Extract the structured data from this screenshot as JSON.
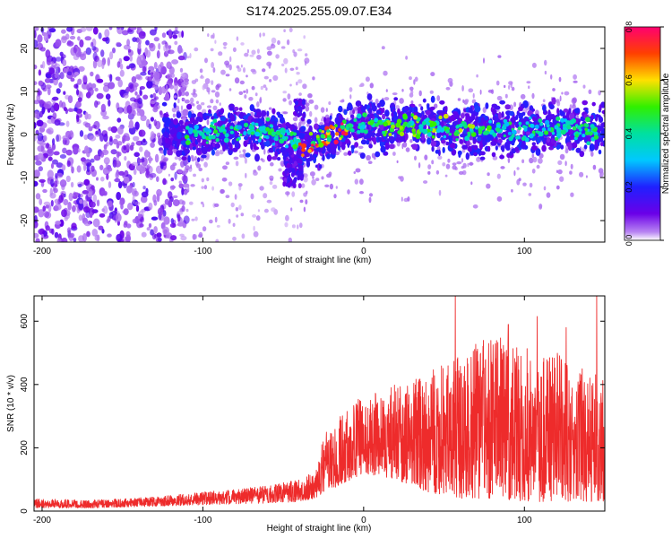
{
  "title": "S174.2025.255.09.07.E34",
  "colors": {
    "snr_line": "#ee2b2b",
    "spectrum_scatter": "#7a1ee0",
    "spectrum_ridge": "#3fd24a"
  },
  "chart_data": [
    {
      "type": "heatmap",
      "panel": "top",
      "title": "S174.2025.255.09.07.E34",
      "xlabel": "Height of straight line (km)",
      "ylabel": "Frequency (Hz)",
      "xlim": [
        -205,
        150
      ],
      "ylim": [
        -25,
        25
      ],
      "xticks": [
        -200,
        -100,
        0,
        100
      ],
      "yticks": [
        -20,
        -10,
        0,
        10,
        20
      ],
      "ridge": {
        "description_points_x": [
          -120,
          -60,
          -45,
          -38,
          -30,
          -20,
          -10,
          0,
          20,
          40,
          60,
          80,
          100,
          150
        ],
        "description_points_y": [
          0,
          1,
          -2,
          -3,
          -2,
          0,
          1,
          2,
          2,
          2,
          1,
          1,
          1,
          1
        ]
      },
      "colorbar": {
        "label": "Normalized spectral amplitude",
        "range": [
          0.0,
          0.8
        ],
        "ticks": [
          "0.0",
          "0.2",
          "0.4",
          "0.6",
          "0.8"
        ],
        "ticks_num": [
          0.0,
          0.2,
          0.4,
          0.6,
          0.8
        ],
        "stops": [
          {
            "v": 0.0,
            "c": "#ffffff"
          },
          {
            "v": 0.03,
            "c": "#b986f2"
          },
          {
            "v": 0.1,
            "c": "#6a00e8"
          },
          {
            "v": 0.2,
            "c": "#2020ff"
          },
          {
            "v": 0.3,
            "c": "#00c8ff"
          },
          {
            "v": 0.4,
            "c": "#00e0a0"
          },
          {
            "v": 0.5,
            "c": "#30f000"
          },
          {
            "v": 0.6,
            "c": "#ffe000"
          },
          {
            "v": 0.7,
            "c": "#ff4000"
          },
          {
            "v": 0.8,
            "c": "#ff0070"
          }
        ]
      }
    },
    {
      "type": "line",
      "panel": "bottom",
      "xlabel": "Height of straight line (km)",
      "ylabel": "SNR (10 * v/v)",
      "xlim": [
        -205,
        150
      ],
      "ylim": [
        0,
        680
      ],
      "xticks": [
        -200,
        -100,
        0,
        100
      ],
      "yticks": [
        0,
        200,
        400,
        600
      ],
      "envelope": {
        "x": [
          -205,
          -170,
          -130,
          -100,
          -60,
          -40,
          -30,
          -25,
          -15,
          0,
          20,
          40,
          60,
          80,
          100,
          120,
          150
        ],
        "upper": [
          40,
          35,
          45,
          60,
          80,
          100,
          130,
          240,
          300,
          370,
          400,
          450,
          500,
          560,
          520,
          500,
          430
        ],
        "lower": [
          10,
          10,
          15,
          20,
          25,
          30,
          40,
          60,
          80,
          120,
          100,
          60,
          40,
          40,
          30,
          30,
          30
        ]
      },
      "peaks": [
        {
          "x": 57,
          "y": 680
        },
        {
          "x": 108,
          "y": 615
        },
        {
          "x": 145,
          "y": 680
        },
        {
          "x": 126,
          "y": 580
        },
        {
          "x": 90,
          "y": 590
        }
      ]
    }
  ]
}
